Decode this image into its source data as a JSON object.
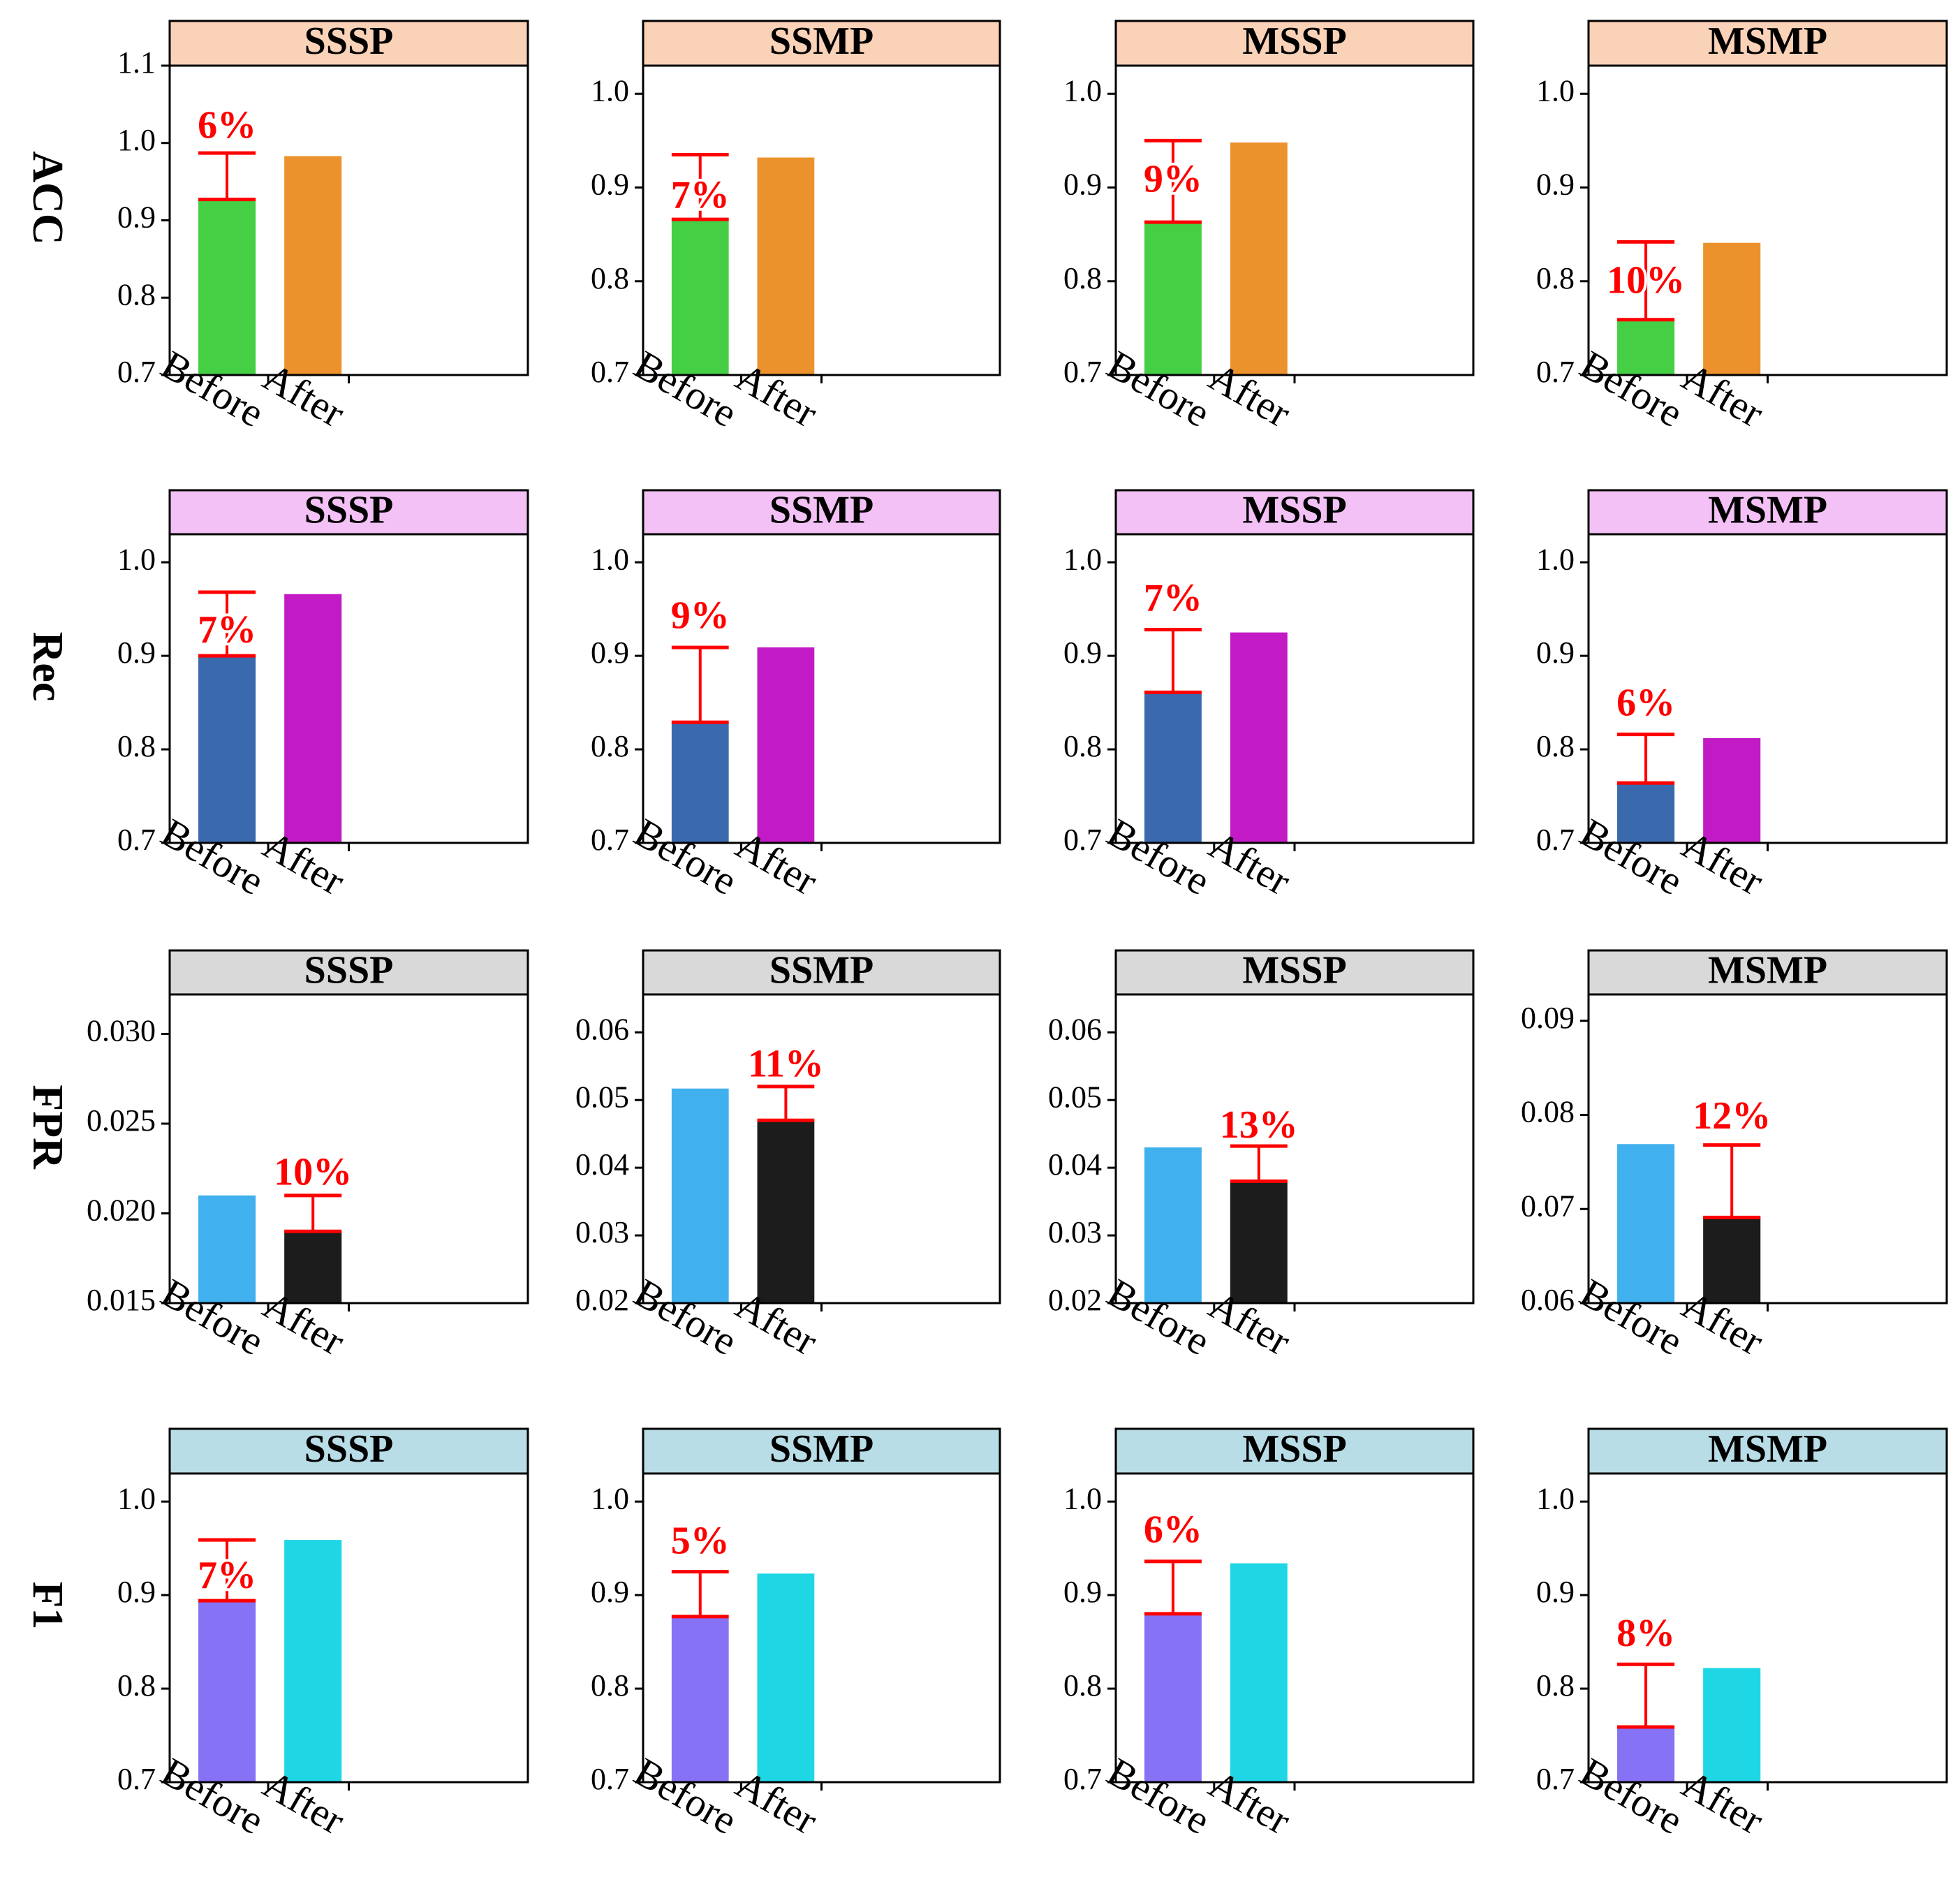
{
  "chart_data": {
    "type": "bar",
    "layout": "4x4 grid of bar charts",
    "columns": [
      "SSSP",
      "SSMP",
      "MSSP",
      "MSMP"
    ],
    "categories": [
      "Before",
      "After"
    ],
    "rows": [
      {
        "metric": "ACC",
        "header_color": "#fad2b8",
        "colors": {
          "Before": "#45cf45",
          "After": "#ec922c"
        },
        "panels": [
          {
            "title": "SSSP",
            "ylim": [
              0.7,
              1.1
            ],
            "yticks": [
              "0.7",
              "0.8",
              "0.9",
              "1.0",
              "1.1"
            ],
            "values": [
              0.927,
              0.983
            ],
            "improvement": "6%",
            "improved_bar": "Before",
            "cap_value": 0.987,
            "label_value": 1.018
          },
          {
            "title": "SSMP",
            "ylim": [
              0.7,
              1.03
            ],
            "yticks": [
              "0.7",
              "0.8",
              "0.9",
              "1.0"
            ],
            "values": [
              0.866,
              0.932
            ],
            "improvement": "7%",
            "improved_bar": "Before",
            "cap_value": 0.935,
            "label_value": 0.888
          },
          {
            "title": "MSSP",
            "ylim": [
              0.7,
              1.03
            ],
            "yticks": [
              "0.7",
              "0.8",
              "0.9",
              "1.0"
            ],
            "values": [
              0.863,
              0.948
            ],
            "improvement": "9%",
            "improved_bar": "Before",
            "cap_value": 0.95,
            "label_value": 0.905
          },
          {
            "title": "MSMP",
            "ylim": [
              0.7,
              1.03
            ],
            "yticks": [
              "0.7",
              "0.8",
              "0.9",
              "1.0"
            ],
            "values": [
              0.759,
              0.841
            ],
            "improvement": "10%",
            "improved_bar": "Before",
            "cap_value": 0.842,
            "label_value": 0.797
          }
        ]
      },
      {
        "metric": "Rec",
        "header_color": "#f3c1f5",
        "colors": {
          "Before": "#3a6aad",
          "After": "#c21bc6"
        },
        "panels": [
          {
            "title": "SSSP",
            "ylim": [
              0.7,
              1.03
            ],
            "yticks": [
              "0.7",
              "0.8",
              "0.9",
              "1.0"
            ],
            "values": [
              0.9,
              0.966
            ],
            "improvement": "7%",
            "improved_bar": "Before",
            "cap_value": 0.968,
            "label_value": 0.924
          },
          {
            "title": "SSMP",
            "ylim": [
              0.7,
              1.03
            ],
            "yticks": [
              "0.7",
              "0.8",
              "0.9",
              "1.0"
            ],
            "values": [
              0.829,
              0.909
            ],
            "improvement": "9%",
            "improved_bar": "Before",
            "cap_value": 0.909,
            "label_value": 0.939
          },
          {
            "title": "MSSP",
            "ylim": [
              0.7,
              1.03
            ],
            "yticks": [
              "0.7",
              "0.8",
              "0.9",
              "1.0"
            ],
            "values": [
              0.861,
              0.925
            ],
            "improvement": "7%",
            "improved_bar": "Before",
            "cap_value": 0.928,
            "label_value": 0.958
          },
          {
            "title": "MSMP",
            "ylim": [
              0.7,
              1.03
            ],
            "yticks": [
              "0.7",
              "0.8",
              "0.9",
              "1.0"
            ],
            "values": [
              0.764,
              0.812
            ],
            "improvement": "6%",
            "improved_bar": "Before",
            "cap_value": 0.816,
            "label_value": 0.846
          }
        ]
      },
      {
        "metric": "FPR",
        "header_color": "#d9d9d9",
        "colors": {
          "Before": "#41b0ee",
          "After": "#1c1c1c"
        },
        "panels": [
          {
            "title": "SSSP",
            "ylim": [
              0.015,
              0.0322
            ],
            "yticks": [
              "0.015",
              "0.020",
              "0.025",
              "0.030"
            ],
            "values": [
              0.021,
              0.019
            ],
            "improvement": "10%",
            "improved_bar": "After",
            "cap_value": 0.021,
            "label_value": 0.0221
          },
          {
            "title": "SSMP",
            "ylim": [
              0.02,
              0.0656
            ],
            "yticks": [
              "0.02",
              "0.03",
              "0.04",
              "0.05",
              "0.06"
            ],
            "values": [
              0.0517,
              0.047
            ],
            "improvement": "11%",
            "improved_bar": "After",
            "cap_value": 0.052,
            "label_value": 0.0548
          },
          {
            "title": "MSSP",
            "ylim": [
              0.02,
              0.0656
            ],
            "yticks": [
              "0.02",
              "0.03",
              "0.04",
              "0.05",
              "0.06"
            ],
            "values": [
              0.043,
              0.038
            ],
            "improvement": "13%",
            "improved_bar": "After",
            "cap_value": 0.0432,
            "label_value": 0.0458
          },
          {
            "title": "MSMP",
            "ylim": [
              0.06,
              0.0928
            ],
            "yticks": [
              "0.06",
              "0.07",
              "0.08",
              "0.09"
            ],
            "values": [
              0.0769,
              0.0691
            ],
            "improvement": "12%",
            "improved_bar": "After",
            "cap_value": 0.0768,
            "label_value": 0.0795
          }
        ]
      },
      {
        "metric": "F1",
        "header_color": "#b8dde6",
        "colors": {
          "Before": "#8672f5",
          "After": "#1fd6e4"
        },
        "panels": [
          {
            "title": "SSSP",
            "ylim": [
              0.7,
              1.03
            ],
            "yticks": [
              "0.7",
              "0.8",
              "0.9",
              "1.0"
            ],
            "values": [
              0.894,
              0.959
            ],
            "improvement": "7%",
            "improved_bar": "Before",
            "cap_value": 0.959,
            "label_value": 0.917
          },
          {
            "title": "SSMP",
            "ylim": [
              0.7,
              1.03
            ],
            "yticks": [
              "0.7",
              "0.8",
              "0.9",
              "1.0"
            ],
            "values": [
              0.877,
              0.923
            ],
            "improvement": "5%",
            "improved_bar": "Before",
            "cap_value": 0.925,
            "label_value": 0.954
          },
          {
            "title": "MSSP",
            "ylim": [
              0.7,
              1.03
            ],
            "yticks": [
              "0.7",
              "0.8",
              "0.9",
              "1.0"
            ],
            "values": [
              0.88,
              0.934
            ],
            "improvement": "6%",
            "improved_bar": "Before",
            "cap_value": 0.936,
            "label_value": 0.966
          },
          {
            "title": "MSMP",
            "ylim": [
              0.7,
              1.03
            ],
            "yticks": [
              "0.7",
              "0.8",
              "0.9",
              "1.0"
            ],
            "values": [
              0.759,
              0.822
            ],
            "improvement": "8%",
            "improved_bar": "Before",
            "cap_value": 0.826,
            "label_value": 0.855
          }
        ]
      }
    ],
    "improvement_color": "#ff0000"
  }
}
